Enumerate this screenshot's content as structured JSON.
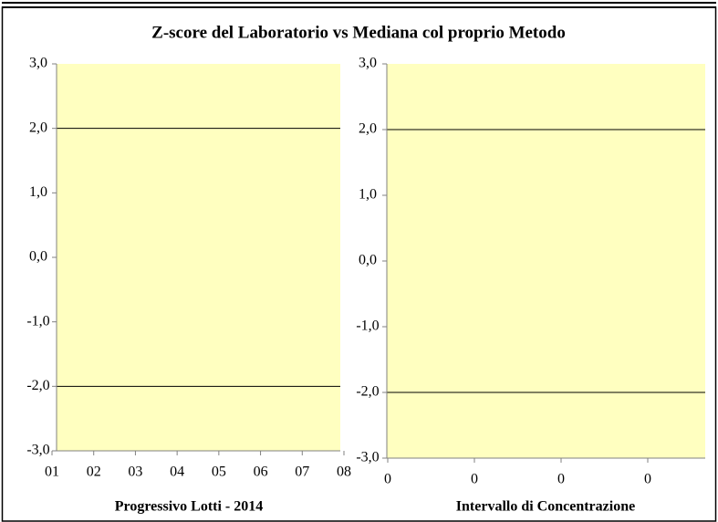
{
  "title": "Z-score del Laboratorio vs Mediana col proprio Metodo",
  "chart_data": [
    {
      "type": "line",
      "xlabel": "Progressivo Lotti  - 2014",
      "categories": [
        "01",
        "02",
        "03",
        "04",
        "05",
        "06",
        "07",
        "08"
      ],
      "ylim": [
        -3,
        3
      ],
      "yticks": [
        {
          "value": -3,
          "label": "-3,0"
        },
        {
          "value": -2,
          "label": "-2,0"
        },
        {
          "value": -1,
          "label": "-1,0"
        },
        {
          "value": 0,
          "label": "0,0"
        },
        {
          "value": 1,
          "label": "1,0"
        },
        {
          "value": 2,
          "label": "2,0"
        },
        {
          "value": 3,
          "label": "3,0"
        }
      ],
      "hlines": [
        2,
        -2
      ],
      "background": "#ffffc0"
    },
    {
      "type": "line",
      "xlabel": "Intervallo di Concentrazione",
      "categories": [
        "0",
        "0",
        "0",
        "0"
      ],
      "ylim": [
        -3,
        3
      ],
      "yticks": [
        {
          "value": -3,
          "label": "-3,0"
        },
        {
          "value": -2,
          "label": "-2,0"
        },
        {
          "value": -1,
          "label": "-1,0"
        },
        {
          "value": 0,
          "label": "0,0"
        },
        {
          "value": 1,
          "label": "1,0"
        },
        {
          "value": 2,
          "label": "2,0"
        },
        {
          "value": 3,
          "label": "3,0"
        }
      ],
      "hlines": [
        2,
        -2
      ],
      "background": "#ffffc0"
    }
  ]
}
